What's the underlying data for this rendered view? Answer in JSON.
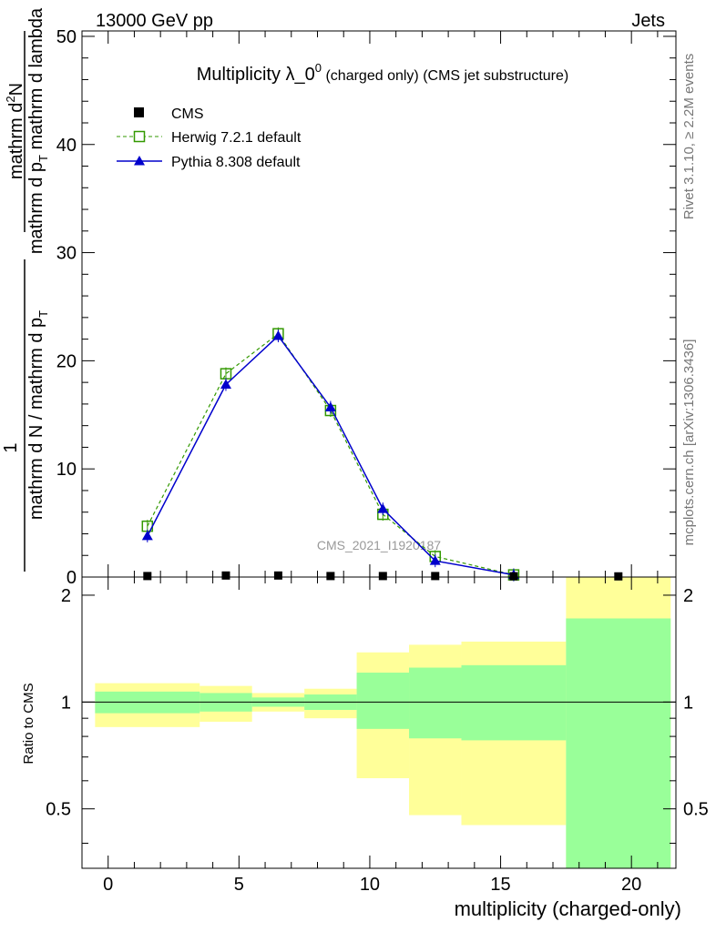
{
  "header": {
    "left": "13000 GeV pp",
    "right": "Jets",
    "rivet": "Rivet 3.1.10, ≥ 2.2M events",
    "mcplots": "mcplots.cern.ch [arXiv:1306.3436]"
  },
  "main_title": {
    "main": "Multiplicity λ_0",
    "sup": "0",
    "small": " (charged only)",
    "rest": " (CMS jet substructure)"
  },
  "ylabel_main": {
    "numerator": "mathrm d",
    "numerator_sup": "2",
    "numerator_end": "N",
    "den_a": "mathrm d p",
    "den_sub": "T",
    "den_b": " mathrm d lambda",
    "prefactor_num": "1",
    "prefactor_den_a": "mathrm d N / mathrm d p",
    "prefactor_den_sub": "T"
  },
  "watermark": "CMS_2021_I1920187",
  "legend": [
    {
      "name": "CMS",
      "color": "#000000",
      "marker": "filled-square",
      "line": "none"
    },
    {
      "name": "Herwig 7.2.1 default",
      "color": "#339900",
      "marker": "open-square",
      "line": "dashed"
    },
    {
      "name": "Pythia 8.308 default",
      "color": "#0000cc",
      "marker": "filled-triangle",
      "line": "solid"
    }
  ],
  "chart_data": [
    {
      "type": "line",
      "panel": "main",
      "title": "Multiplicity λ_0^0 (charged only) (CMS jet substructure)",
      "xlabel": "multiplicity (charged-only)",
      "ylabel": "1/(mathrm d N / mathrm d p_T) mathrm d^2N / (mathrm d p_T mathrm d lambda)",
      "xlim": [
        -1,
        21.7
      ],
      "ylim": [
        0,
        50.5
      ],
      "xticks": [
        0,
        5,
        10,
        15,
        20
      ],
      "yticks": [
        0,
        10,
        20,
        30,
        40,
        50
      ],
      "ytick_labels": [
        "0",
        "10",
        "20",
        "30",
        "40",
        "50"
      ],
      "series": [
        {
          "name": "CMS",
          "x": [
            1.5,
            4.5,
            6.5,
            8.5,
            10.5,
            12.5,
            15.5,
            19.5
          ],
          "y": [
            0.05,
            0.1,
            0.1,
            0.05,
            0.05,
            0.05,
            0.03,
            0.02
          ]
        },
        {
          "name": "Herwig 7.2.1 default",
          "x": [
            1.5,
            4.5,
            6.5,
            8.5,
            10.5,
            12.5,
            15.5
          ],
          "y": [
            4.7,
            18.8,
            22.5,
            15.4,
            5.8,
            1.9,
            0.2
          ]
        },
        {
          "name": "Pythia 8.308 default",
          "x": [
            1.5,
            4.5,
            6.5,
            8.5,
            10.5,
            12.5,
            15.5
          ],
          "y": [
            3.8,
            17.8,
            22.3,
            15.7,
            6.3,
            1.5,
            0.2
          ]
        }
      ]
    },
    {
      "type": "area",
      "panel": "ratio",
      "xlabel": "multiplicity (charged-only)",
      "ylabel": "Ratio to CMS",
      "xlim": [
        -1,
        21.7
      ],
      "ylim": [
        0.34,
        2.25
      ],
      "xticks": [
        0,
        5,
        10,
        15,
        20
      ],
      "xtick_labels": [
        "0",
        "5",
        "10",
        "15",
        "20"
      ],
      "yticks": [
        0.5,
        1,
        2
      ],
      "ytick_labels": [
        "0.5",
        "1",
        "2"
      ],
      "reference_line": 1,
      "bins": [
        {
          "x0": -0.5,
          "x1": 3.5,
          "stat_lo": 0.93,
          "stat_hi": 1.07,
          "tot_lo": 0.85,
          "tot_hi": 1.13
        },
        {
          "x0": 3.5,
          "x1": 5.5,
          "stat_lo": 0.94,
          "stat_hi": 1.06,
          "tot_lo": 0.88,
          "tot_hi": 1.11
        },
        {
          "x0": 5.5,
          "x1": 7.5,
          "stat_lo": 0.97,
          "stat_hi": 1.03,
          "tot_lo": 0.94,
          "tot_hi": 1.06
        },
        {
          "x0": 7.5,
          "x1": 9.5,
          "stat_lo": 0.95,
          "stat_hi": 1.05,
          "tot_lo": 0.9,
          "tot_hi": 1.09
        },
        {
          "x0": 9.5,
          "x1": 11.5,
          "stat_lo": 0.84,
          "stat_hi": 1.21,
          "tot_lo": 0.61,
          "tot_hi": 1.38
        },
        {
          "x0": 11.5,
          "x1": 13.5,
          "stat_lo": 0.79,
          "stat_hi": 1.25,
          "tot_lo": 0.48,
          "tot_hi": 1.45
        },
        {
          "x0": 13.5,
          "x1": 17.5,
          "stat_lo": 0.78,
          "stat_hi": 1.27,
          "tot_lo": 0.45,
          "tot_hi": 1.48
        },
        {
          "x0": 17.5,
          "x1": 21.5,
          "stat_lo": 0.34,
          "stat_hi": 1.72,
          "tot_lo": 0.34,
          "tot_hi": 2.25
        }
      ]
    }
  ],
  "colors": {
    "stat_band": "#99ff99",
    "total_band": "#ffff99",
    "herwig": "#339900",
    "pythia": "#0000cc",
    "cms": "#000000",
    "watermark": "#999999"
  }
}
